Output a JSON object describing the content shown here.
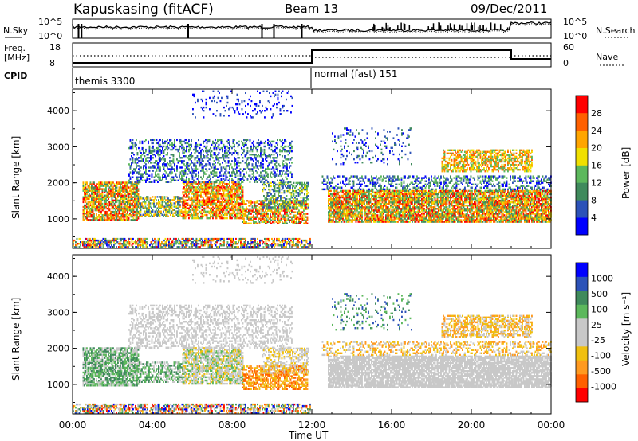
{
  "header": {
    "station": "Kapuskasing (fitACF)",
    "beam": "Beam 13",
    "date": "09/Dec/2011"
  },
  "noise_panel": {
    "left_label": "N.Sky",
    "right_label": "N.Search",
    "left_ticks": [
      "10^5",
      "10^0"
    ],
    "right_ticks": [
      "10^5",
      "10^0"
    ]
  },
  "freq_panel": {
    "left_label_line1": "Freq.",
    "left_label_line2": "[MHz]",
    "right_label": "Nave",
    "left_ticks": [
      "18",
      "8"
    ],
    "right_ticks": [
      "60",
      "0"
    ]
  },
  "cpid_panel": {
    "label": "CPID",
    "modes": [
      {
        "name": "themis 3300",
        "start_hour": 0,
        "end_hour": 12
      },
      {
        "name": "normal (fast) 151",
        "start_hour": 12,
        "end_hour": 24
      }
    ]
  },
  "colors": {
    "power_scale": [
      "#0000ff",
      "#2c52b8",
      "#3f8a5c",
      "#5cb85c",
      "#f0e000",
      "#ffa500",
      "#ff6000",
      "#ff0000"
    ],
    "velocity_scale": [
      "#ff0000",
      "#ff6000",
      "#ff9a20",
      "#f0c010",
      "#c8c8c8",
      "#c8c8c8",
      "#5cb85c",
      "#3f8a5c",
      "#2c52b8",
      "#0000ff"
    ]
  },
  "chart_data": [
    {
      "type": "heatmap",
      "quantity": "power",
      "xlabel": "Time UT",
      "ylabel": "Slant Range [km]",
      "xlim": [
        0,
        24
      ],
      "ylim": [
        180,
        4600
      ],
      "x_ticks": [
        "00:00",
        "04:00",
        "08:00",
        "12:00",
        "16:00",
        "20:00",
        "00:00"
      ],
      "y_ticks": [
        "1000",
        "2000",
        "3000",
        "4000"
      ],
      "colorbar_label": "Power [dB]",
      "colorbar_ticks": [
        "4",
        "8",
        "12",
        "16",
        "20",
        "24",
        "28"
      ],
      "colorbar_range": [
        0,
        30
      ]
    },
    {
      "type": "heatmap",
      "quantity": "velocity",
      "xlabel": "Time UT",
      "ylabel": "Slant Range [km]",
      "xlim": [
        0,
        24
      ],
      "ylim": [
        180,
        4600
      ],
      "x_ticks": [
        "00:00",
        "04:00",
        "08:00",
        "12:00",
        "16:00",
        "20:00",
        "00:00"
      ],
      "y_ticks": [
        "1000",
        "2000",
        "3000",
        "4000"
      ],
      "colorbar_label": "Velocity [m s⁻¹]",
      "colorbar_ticks": [
        "1000",
        "500",
        "100",
        "25",
        "-25",
        "-100",
        "-500",
        "-1000"
      ]
    }
  ],
  "x_axis_title": "Time UT"
}
